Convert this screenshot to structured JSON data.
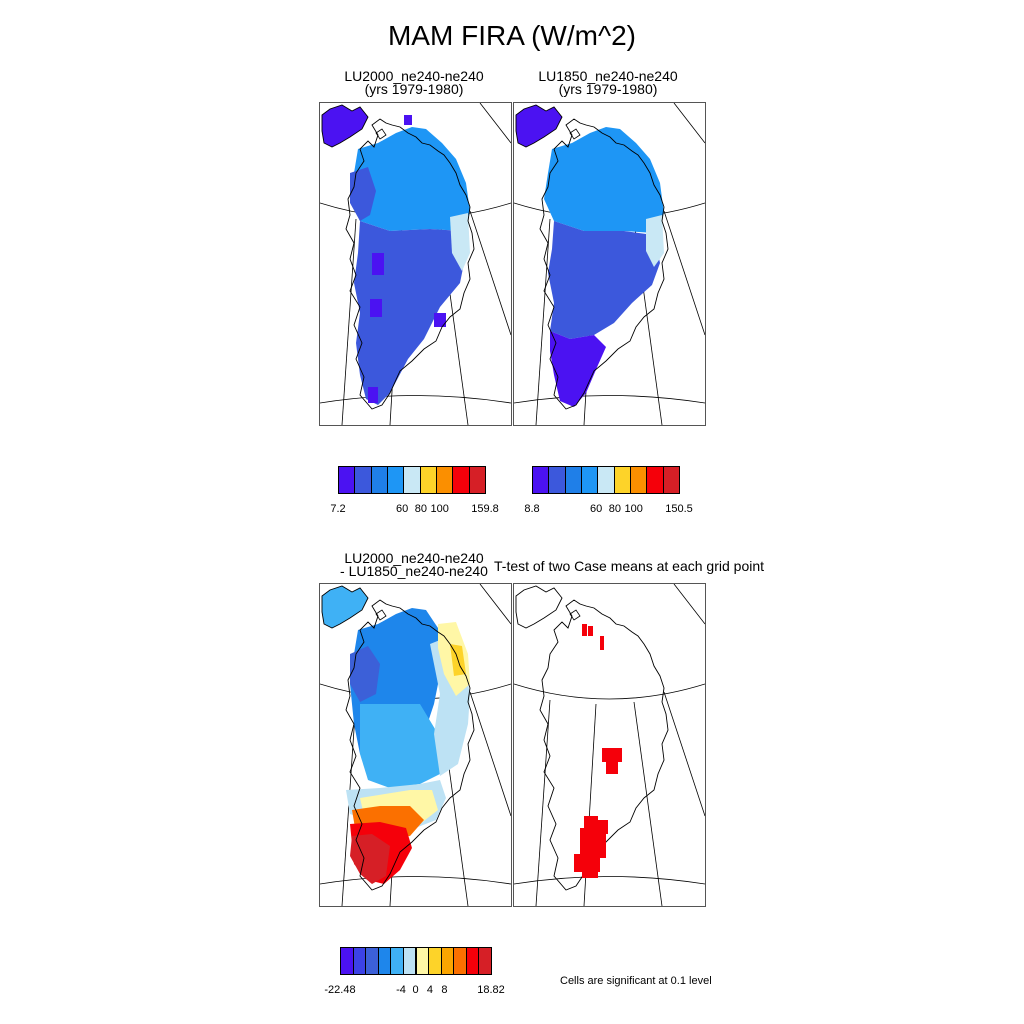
{
  "main_title": "MAM FIRA (W/m^2)",
  "panels": [
    {
      "title_line1": "LU2000_ne240-ne240",
      "title_line2": "(yrs 1979-1980)"
    },
    {
      "title_line1": "LU1850_ne240-ne240",
      "title_line2": "(yrs 1979-1980)"
    },
    {
      "title_line1": "LU2000_ne240-ne240",
      "title_line2": "- LU1850_ne240-ne240"
    },
    {
      "title_line1": "T-test of two Case means at each grid point",
      "title_line2": ""
    }
  ],
  "colorbars": [
    {
      "colors": [
        "#4b12f2",
        "#3c58dc",
        "#1f7fe8",
        "#1e96f5",
        "#c9e8f5",
        "#fdd329",
        "#fb8f00",
        "#f5000a",
        "#d61f26"
      ],
      "tick_labels": [
        "7.2",
        "60",
        "80",
        "100",
        "159.8"
      ]
    },
    {
      "colors": [
        "#4b12f2",
        "#3c58dc",
        "#1f7fe8",
        "#1e96f5",
        "#c9e8f5",
        "#fdd329",
        "#fb8f00",
        "#f5000a",
        "#d61f26"
      ],
      "tick_labels": [
        "8.8",
        "60",
        "80",
        "100",
        "150.5"
      ]
    },
    {
      "colors": [
        "#4b12f2",
        "#3c42e6",
        "#3c60d8",
        "#1e86eb",
        "#3fb1f5",
        "#bde2f4",
        "#fff7a6",
        "#fdd329",
        "#fba500",
        "#fb7000",
        "#f5000a",
        "#d61f26"
      ],
      "tick_labels": [
        "-22.48",
        "-4",
        "0",
        "4",
        "8",
        "18.82"
      ]
    }
  ],
  "significance_note": "Cells are significant at 0.1 level",
  "chart_data": [
    {
      "type": "heatmap",
      "title": "LU2000_ne240-ne240 (yrs 1979-1980)",
      "color_range": [
        7.2,
        159.8
      ],
      "colorbar_ticks": [
        60,
        80,
        100
      ]
    },
    {
      "type": "heatmap",
      "title": "LU1850_ne240-ne240 (yrs 1979-1980)",
      "color_range": [
        8.8,
        150.5
      ],
      "colorbar_ticks": [
        60,
        80,
        100
      ]
    },
    {
      "type": "heatmap",
      "title": "LU2000_ne240-ne240 - LU1850_ne240-ne240",
      "color_range": [
        -22.48,
        18.82
      ],
      "colorbar_ticks": [
        -4,
        0,
        4,
        8
      ]
    },
    {
      "type": "heatmap",
      "title": "T-test of two Case means at each grid point",
      "note": "Cells are significant at 0.1 level"
    }
  ]
}
